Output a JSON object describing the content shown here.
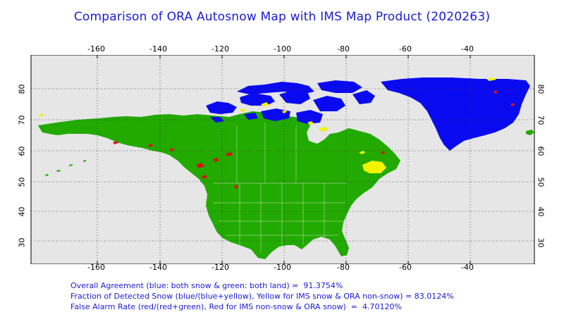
{
  "title": "Comparison of ORA Autosnow Map with IMS Map Product (2020263)",
  "axes": {
    "longitude_ticks": [
      "-160",
      "-140",
      "-120",
      "-100",
      "-80",
      "-60",
      "-40"
    ],
    "latitude_ticks": [
      "30",
      "40",
      "50",
      "60",
      "70",
      "80"
    ]
  },
  "colors": {
    "both_snow": "#0a0af0",
    "both_land": "#22aa00",
    "ims_snow_ora_nonsnow": "#f4f400",
    "ims_nonsnow_ora_snow": "#dd1111",
    "background": "#e6e6e6",
    "text": "#1b1bd6"
  },
  "stats": {
    "overall_agreement": "Overall Agreement (blue: both snow & green: both land) =  91.3754%",
    "fraction_detected": "Fraction of Detected Snow (blue/(blue+yellow), Yellow for IMS snow & ORA non-snow) = 83.0124%",
    "false_alarm": "False Alarm Rate (red/(red+green), Red for IMS non-snow & ORA snow)  =  4.70120%"
  }
}
